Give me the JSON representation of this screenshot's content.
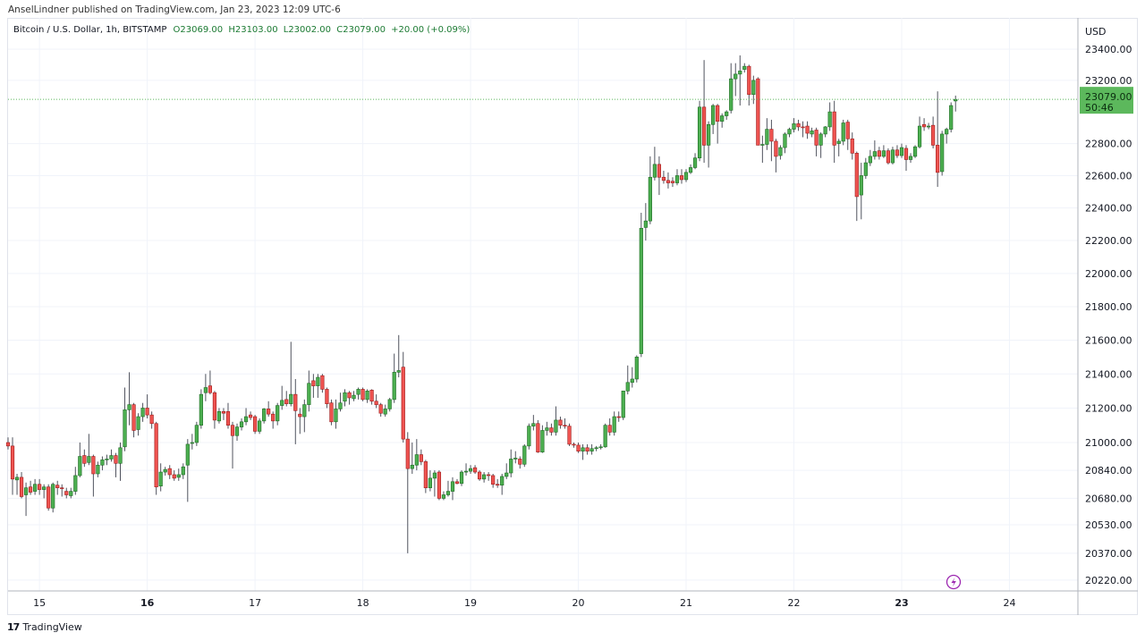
{
  "publisher_line": "AnselLindner published on TradingView.com, Jan 23, 2023 12:09 UTC-6",
  "legend": {
    "symbol": "Bitcoin / U.S. Dollar, 1h, BITSTAMP",
    "open": "O23069.00",
    "high": "H23103.00",
    "low": "L23002.00",
    "close": "C23079.00",
    "change": "+20.00 (+0.09%)"
  },
  "price_axis": {
    "currency": "USD",
    "last_price": "23079.00",
    "countdown": "50:46"
  },
  "footer": {
    "brand": "TradingView",
    "logo_text": "17"
  },
  "icons": {
    "alert": "lightning-icon"
  },
  "colors": {
    "up": "#4caf50",
    "down": "#ef5350",
    "last_price_bg": "#5cb85c",
    "alert": "#9c27b0"
  },
  "chart_data": {
    "type": "candlestick",
    "interval": "1h",
    "scale": "log",
    "ylim": [
      20150,
      23450
    ],
    "grid": true,
    "y_ticks": [
      "23400.00",
      "23200.00",
      "22800.00",
      "22600.00",
      "22400.00",
      "22200.00",
      "22000.00",
      "21800.00",
      "21600.00",
      "21400.00",
      "21200.00",
      "21000.00",
      "20840.00",
      "20680.00",
      "20530.00",
      "20370.00",
      "20220.00"
    ],
    "x_ticks": [
      {
        "label": "15",
        "bold": false
      },
      {
        "label": "16",
        "bold": true
      },
      {
        "label": "17",
        "bold": false
      },
      {
        "label": "18",
        "bold": false
      },
      {
        "label": "19",
        "bold": false
      },
      {
        "label": "20",
        "bold": false
      },
      {
        "label": "21",
        "bold": false
      },
      {
        "label": "22",
        "bold": false
      },
      {
        "label": "23",
        "bold": true
      },
      {
        "label": "24",
        "bold": false
      }
    ],
    "candles_ohlc": [
      [
        21000,
        21030,
        20960,
        20980
      ],
      [
        20980,
        21030,
        20700,
        20790
      ],
      [
        20785,
        20820,
        20700,
        20800
      ],
      [
        20800,
        20830,
        20680,
        20690
      ],
      [
        20700,
        20770,
        20580,
        20740
      ],
      [
        20745,
        20780,
        20700,
        20715
      ],
      [
        20720,
        20790,
        20700,
        20760
      ],
      [
        20760,
        20790,
        20700,
        20730
      ],
      [
        20730,
        20760,
        20680,
        20745
      ],
      [
        20745,
        20760,
        20610,
        20625
      ],
      [
        20625,
        20770,
        20600,
        20760
      ],
      [
        20755,
        20780,
        20700,
        20740
      ],
      [
        20740,
        20760,
        20690,
        20735
      ],
      [
        20720,
        20740,
        20680,
        20700
      ],
      [
        20695,
        20740,
        20680,
        20720
      ],
      [
        20720,
        20860,
        20700,
        20810
      ],
      [
        20810,
        21000,
        20800,
        20920
      ],
      [
        20925,
        20960,
        20860,
        20880
      ],
      [
        20885,
        21050,
        20870,
        20920
      ],
      [
        20920,
        20930,
        20690,
        20820
      ],
      [
        20820,
        20890,
        20800,
        20870
      ],
      [
        20870,
        20920,
        20840,
        20900
      ],
      [
        20900,
        20930,
        20870,
        20905
      ],
      [
        20905,
        20960,
        20890,
        20925
      ],
      [
        20925,
        20940,
        20800,
        20880
      ],
      [
        20880,
        21000,
        20780,
        20970
      ],
      [
        20975,
        21320,
        20950,
        21190
      ],
      [
        21190,
        21410,
        21100,
        21220
      ],
      [
        21220,
        21230,
        21030,
        21070
      ],
      [
        21075,
        21170,
        21040,
        21150
      ],
      [
        21150,
        21230,
        21120,
        21200
      ],
      [
        21200,
        21280,
        21140,
        21160
      ],
      [
        21160,
        21180,
        21080,
        21110
      ],
      [
        21110,
        21120,
        20700,
        20745
      ],
      [
        20750,
        20880,
        20720,
        20830
      ],
      [
        20830,
        20860,
        20810,
        20845
      ],
      [
        20850,
        20870,
        20790,
        20815
      ],
      [
        20815,
        20840,
        20780,
        20795
      ],
      [
        20800,
        20850,
        20780,
        20815
      ],
      [
        20815,
        20880,
        20790,
        20860
      ],
      [
        20870,
        21020,
        20660,
        20990
      ],
      [
        20995,
        21050,
        20960,
        21000
      ],
      [
        21000,
        21120,
        20980,
        21100
      ],
      [
        21100,
        21310,
        21080,
        21280
      ],
      [
        21290,
        21400,
        21240,
        21320
      ],
      [
        21330,
        21420,
        21280,
        21290
      ],
      [
        21290,
        21300,
        21080,
        21130
      ],
      [
        21125,
        21200,
        21110,
        21180
      ],
      [
        21180,
        21200,
        21130,
        21170
      ],
      [
        21180,
        21230,
        21080,
        21100
      ],
      [
        21100,
        21120,
        20850,
        21040
      ],
      [
        21040,
        21110,
        21010,
        21090
      ],
      [
        21090,
        21140,
        21070,
        21120
      ],
      [
        21120,
        21200,
        21100,
        21150
      ],
      [
        21160,
        21180,
        21130,
        21145
      ],
      [
        21150,
        21160,
        21050,
        21065
      ],
      [
        21065,
        21140,
        21050,
        21125
      ],
      [
        21125,
        21200,
        21110,
        21195
      ],
      [
        21195,
        21240,
        21150,
        21165
      ],
      [
        21165,
        21180,
        21080,
        21125
      ],
      [
        21125,
        21230,
        21100,
        21215
      ],
      [
        21215,
        21330,
        21190,
        21245
      ],
      [
        21250,
        21300,
        21210,
        21225
      ],
      [
        21225,
        21590,
        21210,
        21280
      ],
      [
        21280,
        21370,
        20990,
        21185
      ],
      [
        21165,
        21200,
        21050,
        21150
      ],
      [
        21150,
        21250,
        21060,
        21220
      ],
      [
        21220,
        21420,
        21180,
        21345
      ],
      [
        21360,
        21400,
        21260,
        21330
      ],
      [
        21330,
        21400,
        21260,
        21380
      ],
      [
        21390,
        21400,
        21290,
        21310
      ],
      [
        21310,
        21320,
        21200,
        21225
      ],
      [
        21230,
        21250,
        21100,
        21120
      ],
      [
        21120,
        21250,
        21080,
        21195
      ],
      [
        21195,
        21290,
        21180,
        21230
      ],
      [
        21240,
        21310,
        21210,
        21290
      ],
      [
        21290,
        21300,
        21220,
        21260
      ],
      [
        21255,
        21300,
        21240,
        21275
      ],
      [
        21280,
        21320,
        21250,
        21310
      ],
      [
        21310,
        21320,
        21240,
        21250
      ],
      [
        21250,
        21310,
        21230,
        21300
      ],
      [
        21305,
        21310,
        21220,
        21240
      ],
      [
        21240,
        21280,
        21200,
        21220
      ],
      [
        21220,
        21230,
        21150,
        21170
      ],
      [
        21165,
        21220,
        21150,
        21195
      ],
      [
        21195,
        21260,
        21180,
        21250
      ],
      [
        21250,
        21520,
        21230,
        21410
      ],
      [
        21410,
        21630,
        21380,
        21420
      ],
      [
        21440,
        21530,
        21000,
        21020
      ],
      [
        21020,
        21060,
        20370,
        20850
      ],
      [
        20850,
        21000,
        20820,
        20870
      ],
      [
        20870,
        21020,
        20840,
        20930
      ],
      [
        20930,
        20960,
        20870,
        20890
      ],
      [
        20890,
        20900,
        20710,
        20740
      ],
      [
        20740,
        20840,
        20720,
        20795
      ],
      [
        20795,
        20840,
        20690,
        20825
      ],
      [
        20830,
        20840,
        20670,
        20680
      ],
      [
        20680,
        20720,
        20670,
        20700
      ],
      [
        20700,
        20780,
        20690,
        20720
      ],
      [
        20720,
        20800,
        20670,
        20775
      ],
      [
        20775,
        20790,
        20760,
        20765
      ],
      [
        20765,
        20840,
        20750,
        20830
      ],
      [
        20830,
        20880,
        20810,
        20835
      ],
      [
        20835,
        20870,
        20820,
        20850
      ],
      [
        20855,
        20870,
        20820,
        20830
      ],
      [
        20830,
        20840,
        20780,
        20790
      ],
      [
        20790,
        20830,
        20770,
        20815
      ],
      [
        20815,
        20830,
        20780,
        20810
      ],
      [
        20810,
        20820,
        20740,
        20760
      ],
      [
        20760,
        20790,
        20740,
        20755
      ],
      [
        20755,
        20820,
        20700,
        20805
      ],
      [
        20805,
        20880,
        20790,
        20825
      ],
      [
        20825,
        20960,
        20800,
        20905
      ],
      [
        20905,
        20950,
        20880,
        20910
      ],
      [
        20905,
        20920,
        20850,
        20875
      ],
      [
        20875,
        20990,
        20860,
        20980
      ],
      [
        20980,
        21110,
        20960,
        21095
      ],
      [
        21095,
        21160,
        21070,
        21110
      ],
      [
        21110,
        21130,
        20940,
        20945
      ],
      [
        20945,
        21100,
        20940,
        21070
      ],
      [
        21070,
        21120,
        21040,
        21085
      ],
      [
        21085,
        21110,
        21040,
        21060
      ],
      [
        21060,
        21210,
        21040,
        21130
      ],
      [
        21130,
        21150,
        21080,
        21100
      ],
      [
        21100,
        21140,
        21080,
        21095
      ],
      [
        21095,
        21110,
        20980,
        20990
      ],
      [
        20990,
        21000,
        20970,
        20985
      ],
      [
        20985,
        21000,
        20940,
        20950
      ],
      [
        20950,
        20990,
        20900,
        20970
      ],
      [
        20970,
        20990,
        20930,
        20950
      ],
      [
        20950,
        20990,
        20930,
        20965
      ],
      [
        20965,
        20980,
        20950,
        20970
      ],
      [
        20970,
        20990,
        20960,
        20975
      ],
      [
        20975,
        21110,
        20970,
        21100
      ],
      [
        21100,
        21140,
        21040,
        21060
      ],
      [
        21060,
        21180,
        21040,
        21150
      ],
      [
        21150,
        21180,
        21120,
        21145
      ],
      [
        21145,
        21300,
        21130,
        21300
      ],
      [
        21300,
        21450,
        21280,
        21350
      ],
      [
        21350,
        21440,
        21320,
        21370
      ],
      [
        21370,
        21510,
        21350,
        21500
      ],
      [
        21520,
        22370,
        21500,
        22275
      ],
      [
        22280,
        22430,
        22200,
        22320
      ],
      [
        22320,
        22720,
        22300,
        22590
      ],
      [
        22590,
        22780,
        22570,
        22670
      ],
      [
        22670,
        22720,
        22480,
        22590
      ],
      [
        22590,
        22630,
        22550,
        22570
      ],
      [
        22570,
        22620,
        22520,
        22555
      ],
      [
        22565,
        22590,
        22530,
        22555
      ],
      [
        22555,
        22640,
        22540,
        22600
      ],
      [
        22600,
        22640,
        22550,
        22575
      ],
      [
        22575,
        22640,
        22560,
        22620
      ],
      [
        22620,
        22670,
        22610,
        22650
      ],
      [
        22650,
        22740,
        22640,
        22710
      ],
      [
        22710,
        23070,
        22690,
        23030
      ],
      [
        23030,
        23330,
        22680,
        22790
      ],
      [
        22790,
        22940,
        22650,
        22920
      ],
      [
        22920,
        23050,
        22860,
        23040
      ],
      [
        23040,
        23050,
        22800,
        22940
      ],
      [
        22940,
        22990,
        22900,
        22975
      ],
      [
        22975,
        23010,
        22950,
        23000
      ],
      [
        23010,
        23310,
        22990,
        23210
      ],
      [
        23210,
        23310,
        23100,
        23240
      ],
      [
        23240,
        23360,
        23040,
        23260
      ],
      [
        23270,
        23310,
        23250,
        23290
      ],
      [
        23290,
        23300,
        23040,
        23110
      ],
      [
        23110,
        23230,
        23050,
        23200
      ],
      [
        23210,
        23220,
        22790,
        22790
      ],
      [
        22790,
        22850,
        22680,
        22795
      ],
      [
        22795,
        22960,
        22760,
        22890
      ],
      [
        22890,
        22950,
        22690,
        22815
      ],
      [
        22815,
        22830,
        22620,
        22720
      ],
      [
        22725,
        22790,
        22700,
        22775
      ],
      [
        22775,
        22870,
        22740,
        22860
      ],
      [
        22860,
        22900,
        22840,
        22890
      ],
      [
        22890,
        22960,
        22870,
        22925
      ],
      [
        22925,
        22950,
        22880,
        22905
      ],
      [
        22905,
        22940,
        22840,
        22900
      ],
      [
        22910,
        22940,
        22830,
        22865
      ],
      [
        22860,
        22900,
        22840,
        22880
      ],
      [
        22885,
        22900,
        22720,
        22790
      ],
      [
        22790,
        22870,
        22710,
        22860
      ],
      [
        22860,
        22910,
        22840,
        22905
      ],
      [
        22905,
        23060,
        22880,
        23000
      ],
      [
        23000,
        23070,
        22680,
        22790
      ],
      [
        22800,
        22830,
        22720,
        22815
      ],
      [
        22815,
        22950,
        22790,
        22930
      ],
      [
        22935,
        22950,
        22760,
        22830
      ],
      [
        22830,
        22870,
        22700,
        22740
      ],
      [
        22740,
        22750,
        22320,
        22470
      ],
      [
        22480,
        22680,
        22330,
        22600
      ],
      [
        22600,
        22710,
        22580,
        22680
      ],
      [
        22680,
        22760,
        22660,
        22720
      ],
      [
        22720,
        22820,
        22700,
        22750
      ],
      [
        22755,
        22780,
        22700,
        22720
      ],
      [
        22720,
        22790,
        22710,
        22755
      ],
      [
        22755,
        22770,
        22670,
        22680
      ],
      [
        22680,
        22780,
        22670,
        22760
      ],
      [
        22760,
        22790,
        22710,
        22725
      ],
      [
        22725,
        22800,
        22710,
        22775
      ],
      [
        22770,
        22790,
        22630,
        22700
      ],
      [
        22700,
        22740,
        22680,
        22720
      ],
      [
        22720,
        22790,
        22710,
        22780
      ],
      [
        22780,
        22970,
        22770,
        22910
      ],
      [
        22920,
        22960,
        22880,
        22905
      ],
      [
        22905,
        22930,
        22890,
        22910
      ],
      [
        22915,
        22970,
        22770,
        22790
      ],
      [
        22790,
        23130,
        22530,
        22620
      ],
      [
        22625,
        22880,
        22600,
        22860
      ],
      [
        22860,
        22900,
        22800,
        22890
      ],
      [
        22890,
        23060,
        22870,
        23040
      ],
      [
        23069,
        23103,
        23002,
        23079
      ]
    ]
  }
}
